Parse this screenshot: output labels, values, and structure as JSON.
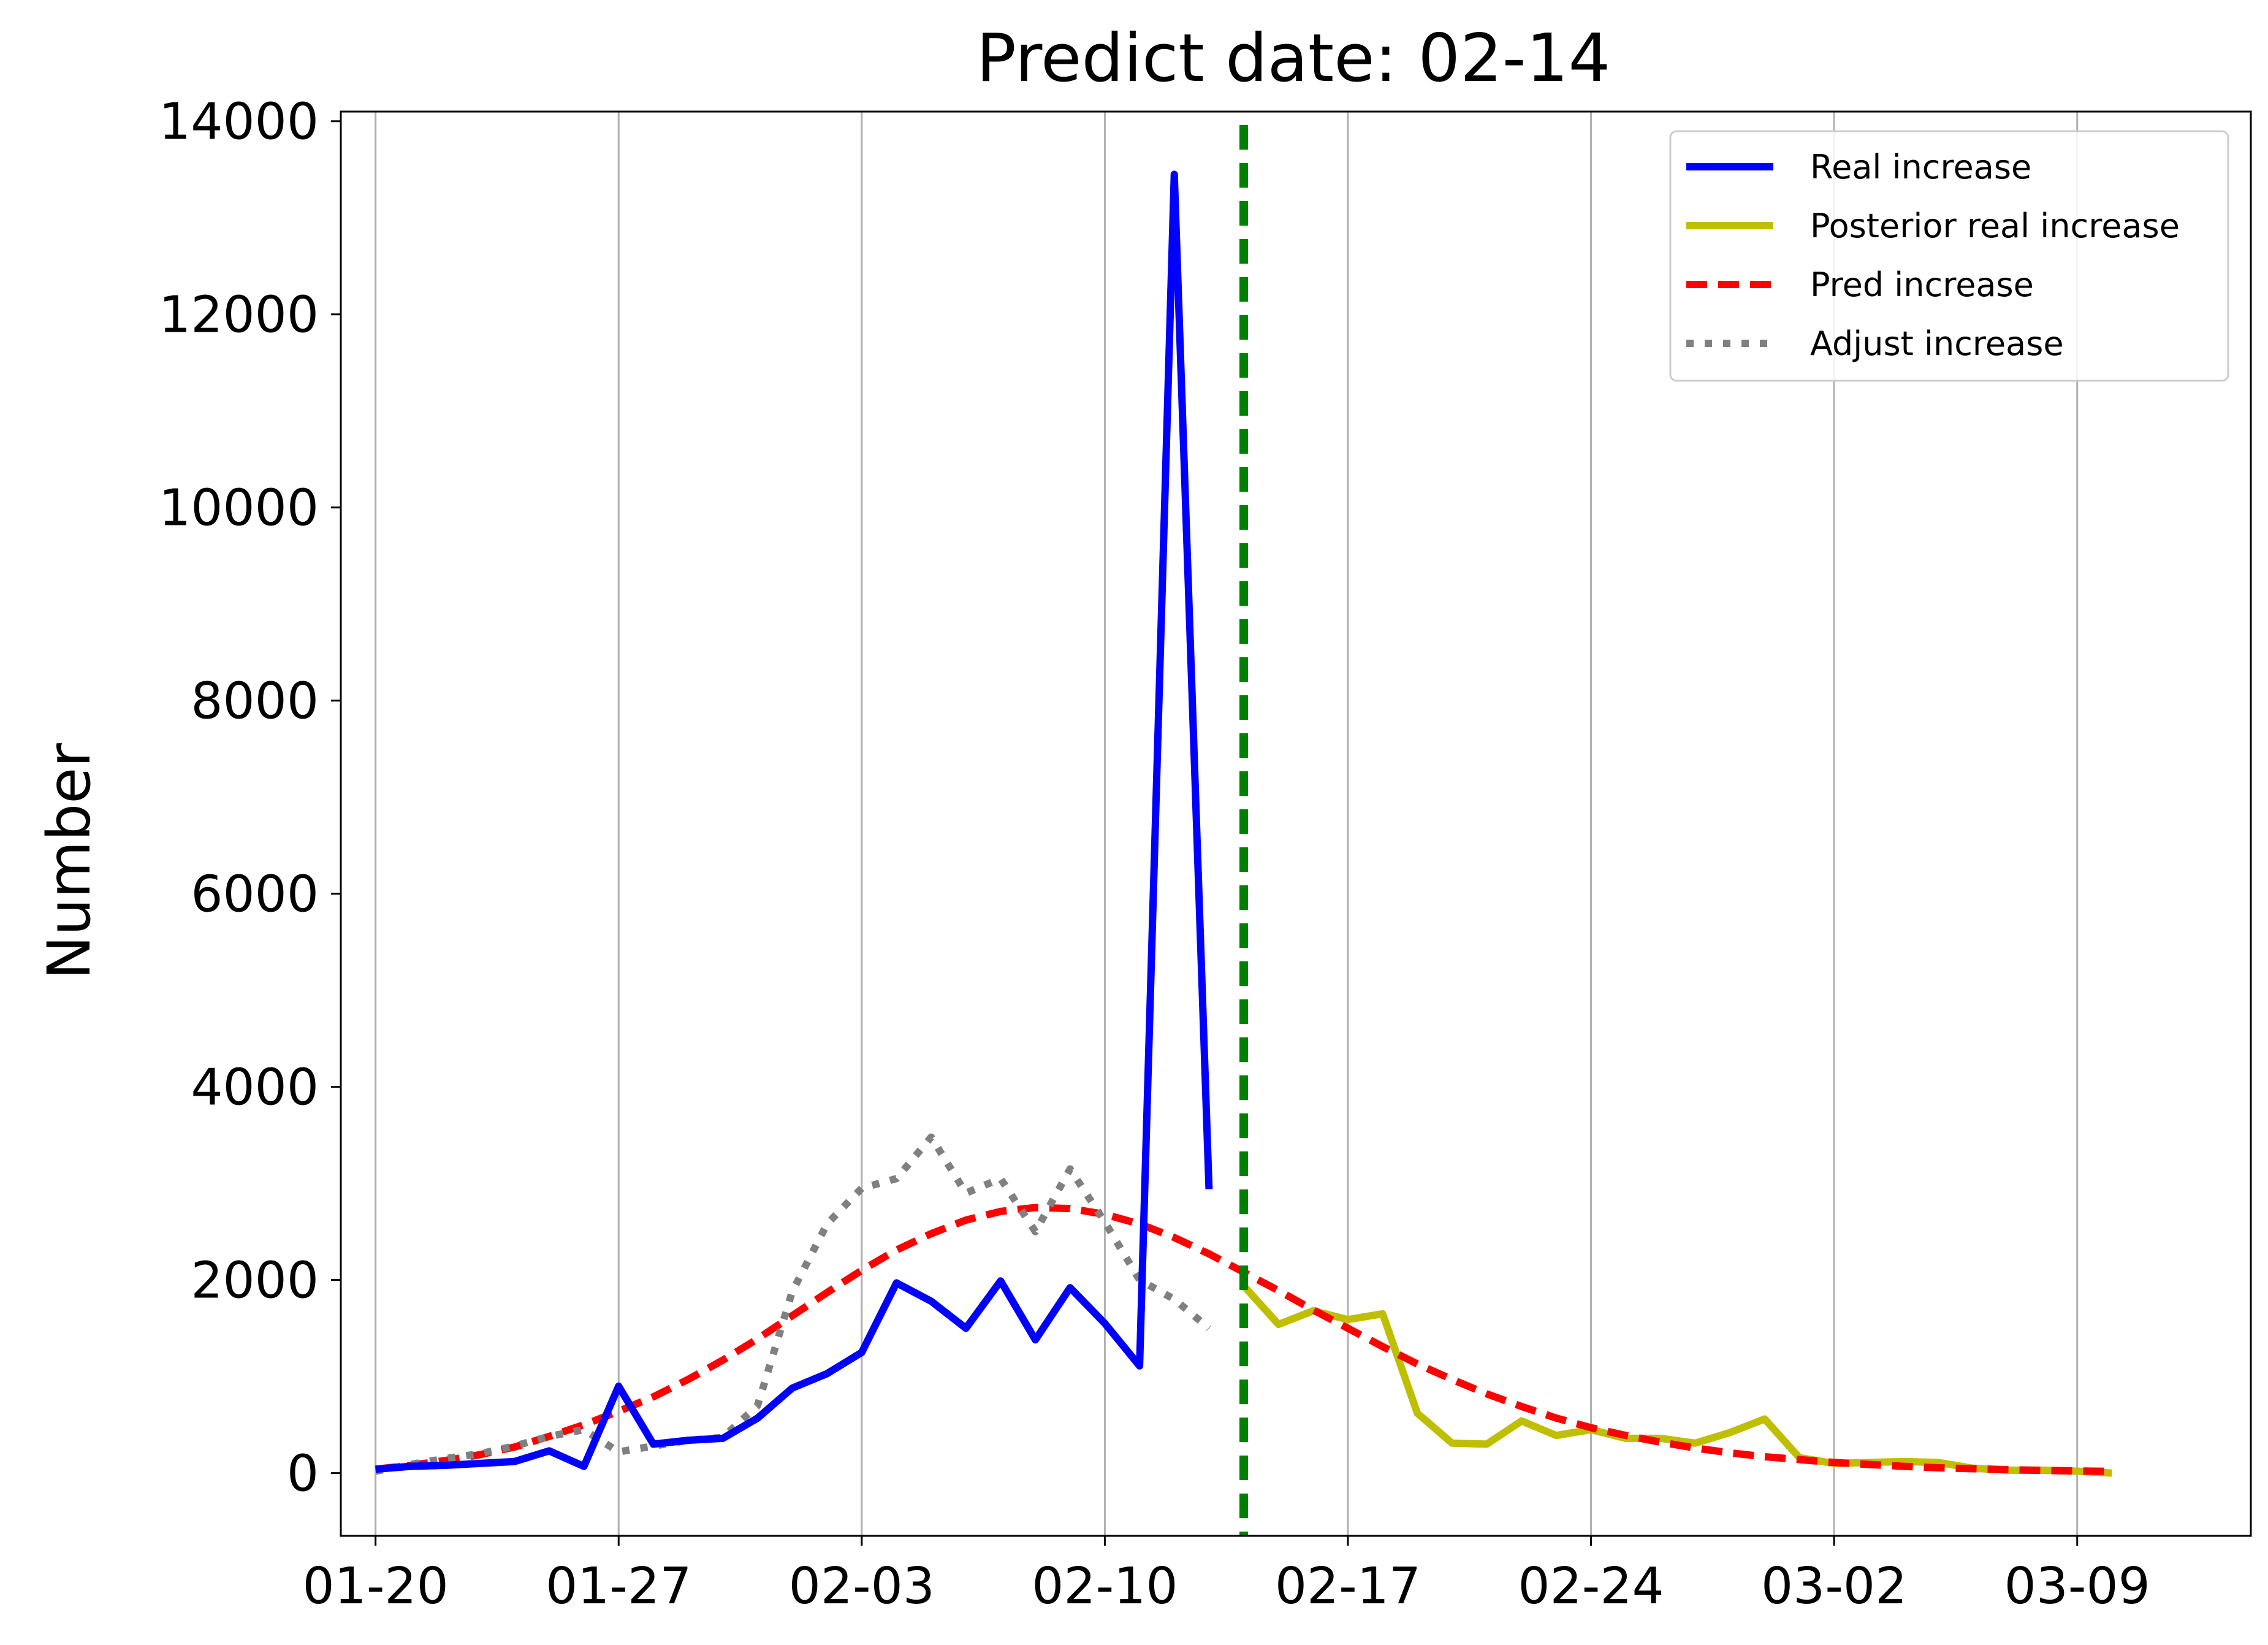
{
  "chart_data": {
    "type": "line",
    "title": "Predict date: 02-14",
    "xlabel": "",
    "ylabel": "Number",
    "xlim": [
      "2020-01-19",
      "2020-03-14"
    ],
    "ylim": [
      -650,
      14100
    ],
    "grid": "vertical",
    "legend_position": "top-right",
    "x_ticks": [
      {
        "date": "2020-01-20",
        "label": "01-20"
      },
      {
        "date": "2020-01-27",
        "label": "01-27"
      },
      {
        "date": "2020-02-03",
        "label": "02-03"
      },
      {
        "date": "2020-02-10",
        "label": "02-10"
      },
      {
        "date": "2020-02-17",
        "label": "02-17"
      },
      {
        "date": "2020-02-24",
        "label": "02-24"
      },
      {
        "date": "2020-03-02",
        "label": "03-02"
      },
      {
        "date": "2020-03-09",
        "label": "03-09"
      }
    ],
    "y_ticks": [
      0,
      2000,
      4000,
      6000,
      8000,
      10000,
      12000,
      14000
    ],
    "predict_line": {
      "date": "2020-02-14",
      "color": "#008000",
      "style": "dashed"
    },
    "series": [
      {
        "name": "Real increase",
        "color": "#0000ff",
        "style": "solid",
        "points": [
          [
            "2020-01-20",
            40
          ],
          [
            "2020-01-21",
            70
          ],
          [
            "2020-01-22",
            80
          ],
          [
            "2020-01-23",
            100
          ],
          [
            "2020-01-24",
            120
          ],
          [
            "2020-01-25",
            230
          ],
          [
            "2020-01-26",
            70
          ],
          [
            "2020-01-27",
            900
          ],
          [
            "2020-01-28",
            300
          ],
          [
            "2020-01-29",
            340
          ],
          [
            "2020-01-30",
            360
          ],
          [
            "2020-01-31",
            570
          ],
          [
            "2020-02-01",
            880
          ],
          [
            "2020-02-02",
            1030
          ],
          [
            "2020-02-03",
            1250
          ],
          [
            "2020-02-04",
            1970
          ],
          [
            "2020-02-05",
            1780
          ],
          [
            "2020-02-06",
            1500
          ],
          [
            "2020-02-07",
            1990
          ],
          [
            "2020-02-08",
            1380
          ],
          [
            "2020-02-09",
            1920
          ],
          [
            "2020-02-10",
            1550
          ],
          [
            "2020-02-11",
            1110
          ],
          [
            "2020-02-12",
            13450
          ],
          [
            "2020-02-13",
            2940
          ]
        ]
      },
      {
        "name": "Posterior real increase",
        "color": "#bfbf00",
        "style": "solid",
        "points": [
          [
            "2020-02-14",
            1940
          ],
          [
            "2020-02-15",
            1540
          ],
          [
            "2020-02-16",
            1680
          ],
          [
            "2020-02-17",
            1590
          ],
          [
            "2020-02-18",
            1650
          ],
          [
            "2020-02-19",
            620
          ],
          [
            "2020-02-20",
            310
          ],
          [
            "2020-02-21",
            300
          ],
          [
            "2020-02-22",
            540
          ],
          [
            "2020-02-23",
            390
          ],
          [
            "2020-02-24",
            450
          ],
          [
            "2020-02-25",
            360
          ],
          [
            "2020-02-26",
            360
          ],
          [
            "2020-02-27",
            310
          ],
          [
            "2020-02-28",
            420
          ],
          [
            "2020-02-29",
            560
          ],
          [
            "2020-03-01",
            160
          ],
          [
            "2020-03-02",
            100
          ],
          [
            "2020-03-03",
            110
          ],
          [
            "2020-03-04",
            120
          ],
          [
            "2020-03-05",
            110
          ],
          [
            "2020-03-06",
            50
          ],
          [
            "2020-03-07",
            30
          ],
          [
            "2020-03-08",
            30
          ],
          [
            "2020-03-09",
            20
          ],
          [
            "2020-03-10",
            0
          ]
        ]
      },
      {
        "name": "Pred increase",
        "color": "#ff0000",
        "style": "dashed",
        "points": [
          [
            "2020-01-20",
            40
          ],
          [
            "2020-01-21",
            80
          ],
          [
            "2020-01-22",
            130
          ],
          [
            "2020-01-23",
            190
          ],
          [
            "2020-01-24",
            270
          ],
          [
            "2020-01-25",
            380
          ],
          [
            "2020-01-26",
            500
          ],
          [
            "2020-01-27",
            640
          ],
          [
            "2020-01-28",
            790
          ],
          [
            "2020-01-29",
            970
          ],
          [
            "2020-01-30",
            1170
          ],
          [
            "2020-01-31",
            1390
          ],
          [
            "2020-02-01",
            1630
          ],
          [
            "2020-02-02",
            1870
          ],
          [
            "2020-02-03",
            2100
          ],
          [
            "2020-02-04",
            2310
          ],
          [
            "2020-02-05",
            2480
          ],
          [
            "2020-02-06",
            2620
          ],
          [
            "2020-02-07",
            2710
          ],
          [
            "2020-02-08",
            2750
          ],
          [
            "2020-02-09",
            2740
          ],
          [
            "2020-02-10",
            2680
          ],
          [
            "2020-02-11",
            2580
          ],
          [
            "2020-02-12",
            2440
          ],
          [
            "2020-02-13",
            2270
          ],
          [
            "2020-02-14",
            2080
          ],
          [
            "2020-02-15",
            1890
          ],
          [
            "2020-02-16",
            1690
          ],
          [
            "2020-02-17",
            1500
          ],
          [
            "2020-02-18",
            1310
          ],
          [
            "2020-02-19",
            1130
          ],
          [
            "2020-02-20",
            970
          ],
          [
            "2020-02-21",
            820
          ],
          [
            "2020-02-22",
            690
          ],
          [
            "2020-02-23",
            570
          ],
          [
            "2020-02-24",
            470
          ],
          [
            "2020-02-25",
            390
          ],
          [
            "2020-02-26",
            320
          ],
          [
            "2020-02-27",
            260
          ],
          [
            "2020-02-28",
            210
          ],
          [
            "2020-02-29",
            170
          ],
          [
            "2020-03-01",
            140
          ],
          [
            "2020-03-02",
            110
          ],
          [
            "2020-03-03",
            90
          ],
          [
            "2020-03-04",
            70
          ],
          [
            "2020-03-05",
            55
          ],
          [
            "2020-03-06",
            45
          ],
          [
            "2020-03-07",
            35
          ],
          [
            "2020-03-08",
            28
          ],
          [
            "2020-03-09",
            22
          ],
          [
            "2020-03-10",
            18
          ]
        ]
      },
      {
        "name": "Adjust increase",
        "color": "#808080",
        "style": "dotted",
        "points": [
          [
            "2020-01-20",
            20
          ],
          [
            "2020-01-21",
            90
          ],
          [
            "2020-01-22",
            150
          ],
          [
            "2020-01-23",
            200
          ],
          [
            "2020-01-24",
            280
          ],
          [
            "2020-01-25",
            380
          ],
          [
            "2020-01-26",
            450
          ],
          [
            "2020-01-27",
            220
          ],
          [
            "2020-01-28",
            280
          ],
          [
            "2020-01-29",
            340
          ],
          [
            "2020-01-30",
            370
          ],
          [
            "2020-01-31",
            700
          ],
          [
            "2020-02-01",
            1880
          ],
          [
            "2020-02-02",
            2580
          ],
          [
            "2020-02-03",
            2950
          ],
          [
            "2020-02-04",
            3050
          ],
          [
            "2020-02-05",
            3480
          ],
          [
            "2020-02-06",
            2900
          ],
          [
            "2020-02-07",
            3050
          ],
          [
            "2020-02-08",
            2500
          ],
          [
            "2020-02-09",
            3150
          ],
          [
            "2020-02-10",
            2600
          ],
          [
            "2020-02-11",
            2000
          ],
          [
            "2020-02-12",
            1800
          ],
          [
            "2020-02-13",
            1500
          ]
        ]
      }
    ]
  }
}
